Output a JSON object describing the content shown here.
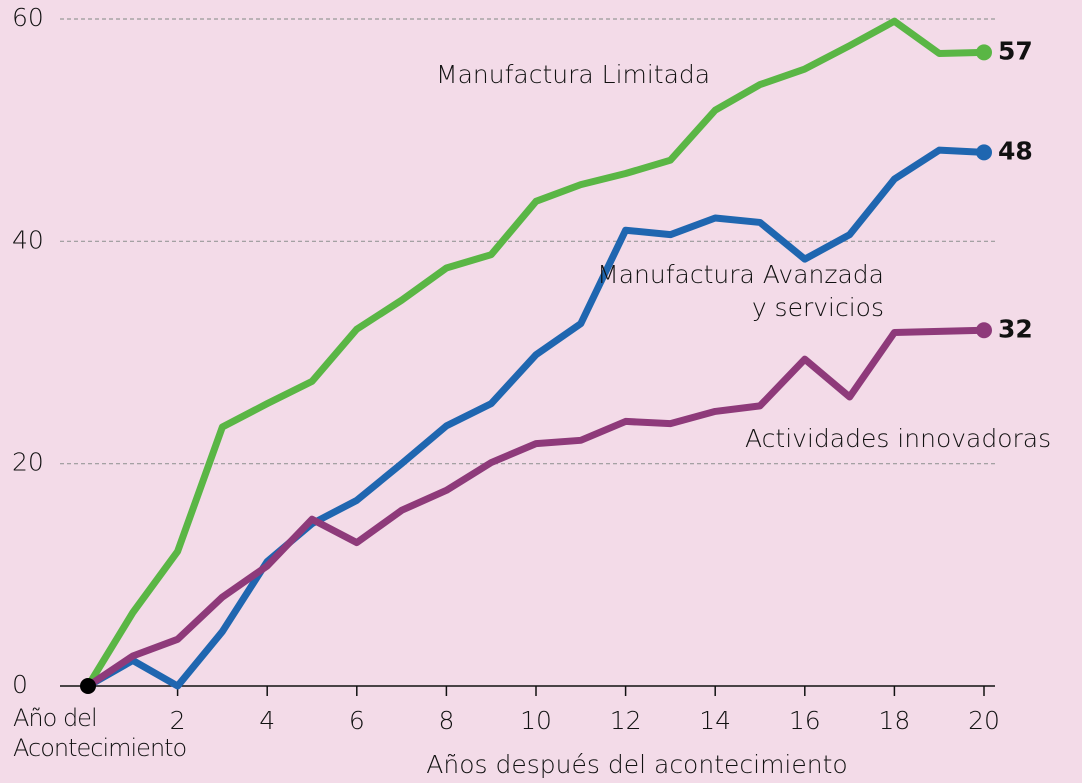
{
  "chart_data": {
    "type": "line",
    "xlabel": "Años después del acontecimiento",
    "x": [
      0,
      1,
      2,
      3,
      4,
      5,
      6,
      7,
      8,
      9,
      10,
      11,
      12,
      13,
      14,
      15,
      16,
      17,
      18,
      19,
      20
    ],
    "series": [
      {
        "name": "Manufactura Limitada",
        "color": "#5ab645",
        "values": [
          0,
          6.6,
          12.1,
          23.3,
          25.4,
          27.4,
          32.1,
          34.7,
          37.6,
          38.8,
          43.6,
          45.1,
          46.1,
          47.3,
          51.8,
          54.1,
          55.5,
          57.6,
          59.8,
          56.9,
          57
        ]
      },
      {
        "name": "Manufactura Avanzada y servicios",
        "color": "#1f66b0",
        "values": [
          0,
          2.3,
          0,
          4.9,
          11.2,
          14.6,
          16.7,
          20,
          23.4,
          25.4,
          29.8,
          32.6,
          41,
          40.6,
          42.1,
          41.7,
          38.4,
          40.6,
          45.6,
          48.2,
          48
        ]
      },
      {
        "name": "Actividades innovadoras",
        "color": "#8e3a7a",
        "values": [
          0,
          2.7,
          4.2,
          8,
          10.8,
          15,
          12.9,
          15.8,
          17.6,
          20.1,
          21.8,
          22.1,
          23.8,
          23.6,
          24.7,
          25.2,
          29.4,
          26,
          31.8,
          31.9,
          32
        ]
      }
    ],
    "xlim": [
      0,
      20
    ],
    "xticks": [
      {
        "value": 0,
        "label": "Año del Acontecimiento"
      },
      2,
      4,
      6,
      8,
      10,
      12,
      14,
      16,
      18,
      20
    ],
    "ylim": [
      0,
      60
    ],
    "yticks": [
      0,
      20,
      40,
      60
    ],
    "grid": true
  }
}
